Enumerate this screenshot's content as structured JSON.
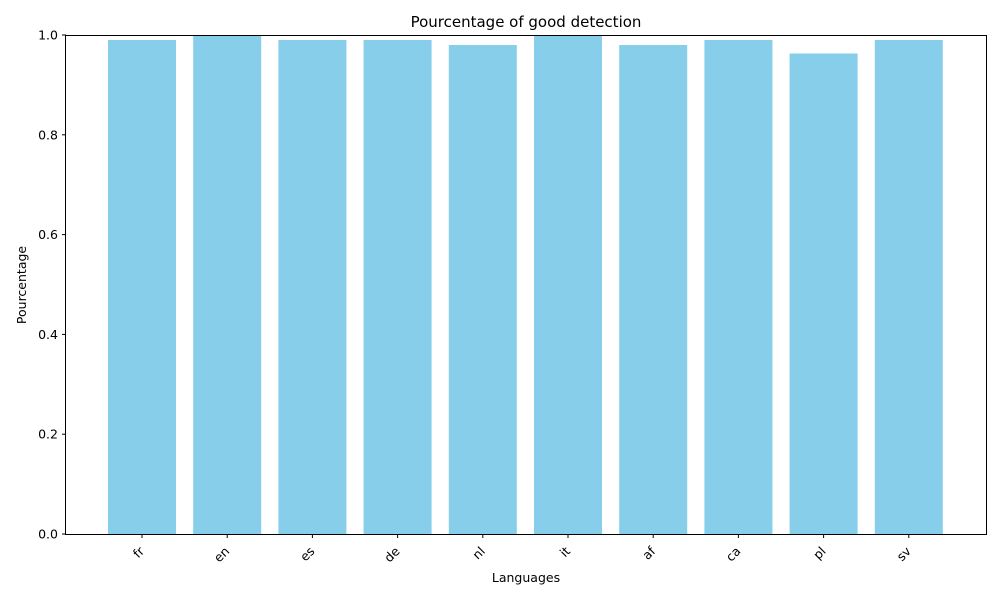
{
  "chart_data": {
    "type": "bar",
    "title": "Pourcentage of good detection",
    "xlabel": "Languages",
    "ylabel": "Pourcentage",
    "categories": [
      "fr",
      "en",
      "es",
      "de",
      "nl",
      "it",
      "af",
      "ca",
      "pl",
      "sv"
    ],
    "values": [
      0.99,
      1.0,
      0.99,
      0.99,
      0.98,
      1.0,
      0.98,
      0.99,
      0.963,
      0.99
    ],
    "ylim": [
      0,
      1.0
    ],
    "yticks": [
      "0.0",
      "0.2",
      "0.4",
      "0.6",
      "0.8",
      "1.0"
    ],
    "bar_color": "#87ceeb",
    "grid": false,
    "xtick_rotation": "45 degrees"
  }
}
